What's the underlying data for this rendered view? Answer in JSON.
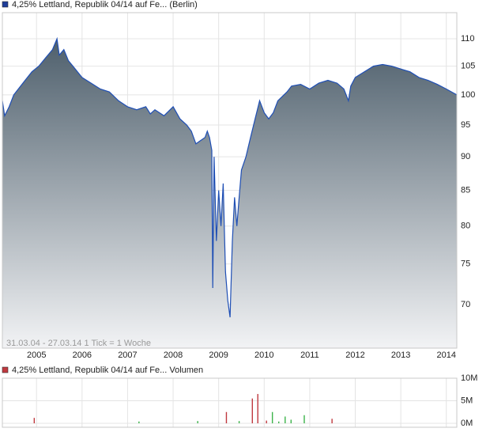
{
  "chart_data": [
    {
      "type": "line",
      "title": "4,25% Lettland, Republik 04/14 auf Fe... (Berlin)",
      "annotation": "31.03.04 - 27.03.14   1 Tick = 1 Woche",
      "legend_color": "#1f3d99",
      "line_color": "#1f4fb5",
      "log_scale": true,
      "grid": true,
      "x": [
        2004.25,
        2004.3,
        2004.4,
        2004.5,
        2004.6,
        2004.75,
        2004.9,
        2005.05,
        2005.2,
        2005.35,
        2005.45,
        2005.5,
        2005.6,
        2005.7,
        2005.8,
        2006.0,
        2006.2,
        2006.4,
        2006.6,
        2006.8,
        2007.0,
        2007.2,
        2007.4,
        2007.5,
        2007.6,
        2007.8,
        2008.0,
        2008.15,
        2008.3,
        2008.4,
        2008.5,
        2008.6,
        2008.7,
        2008.75,
        2008.8,
        2008.85,
        2008.87,
        2008.9,
        2008.95,
        2009.0,
        2009.05,
        2009.1,
        2009.15,
        2009.2,
        2009.25,
        2009.3,
        2009.35,
        2009.4,
        2009.45,
        2009.5,
        2009.6,
        2009.7,
        2009.8,
        2009.9,
        2010.0,
        2010.1,
        2010.2,
        2010.3,
        2010.5,
        2010.6,
        2010.8,
        2011.0,
        2011.2,
        2011.4,
        2011.6,
        2011.75,
        2011.85,
        2011.9,
        2012.0,
        2012.2,
        2012.4,
        2012.6,
        2012.8,
        2013.0,
        2013.2,
        2013.4,
        2013.6,
        2013.8,
        2014.0,
        2014.23
      ],
      "values": [
        99,
        96.5,
        98,
        100,
        101,
        102.5,
        104,
        105,
        106.5,
        108,
        110,
        107,
        108,
        106,
        105,
        103,
        102,
        101,
        100.5,
        99,
        98,
        97.5,
        98,
        96.8,
        97.5,
        96.5,
        98,
        96,
        95,
        94,
        92,
        92.5,
        93,
        94,
        93,
        91,
        72,
        90,
        78,
        85,
        80,
        86,
        74,
        70.5,
        68.5,
        78,
        84,
        80,
        84,
        88,
        90,
        93,
        96,
        99,
        97,
        96,
        97,
        99,
        100.5,
        101.5,
        101.8,
        101,
        102,
        102.5,
        102,
        101,
        99,
        101.5,
        103,
        104,
        105,
        105.3,
        105,
        104.5,
        104,
        103,
        102.5,
        101.8,
        101,
        100
      ],
      "xlim": [
        2004.25,
        2014.23
      ],
      "xticks": [
        2005,
        2006,
        2007,
        2008,
        2009,
        2010,
        2011,
        2012,
        2013,
        2014
      ],
      "ylim": [
        65,
        115
      ],
      "yticks": [
        70,
        75,
        80,
        85,
        90,
        95,
        100,
        105,
        110
      ]
    },
    {
      "type": "bar",
      "title": "4,25% Lettland, Republik 04/14 auf Fe... Volumen",
      "legend_color": "#c0393f",
      "x": [
        2004.95,
        2007.25,
        2008.54,
        2009.17,
        2009.45,
        2009.74,
        2009.86,
        2010.05,
        2010.18,
        2010.32,
        2010.46,
        2010.59,
        2010.88,
        2011.49
      ],
      "values": [
        1.2,
        0.4,
        0.5,
        2.5,
        0.5,
        5.5,
        6.5,
        0.6,
        2.5,
        0.4,
        1.5,
        0.8,
        1.8,
        1
      ],
      "colors": [
        "#c0393f",
        "#3cb34a",
        "#3cb34a",
        "#c0393f",
        "#3cb34a",
        "#c0393f",
        "#c0393f",
        "#c0393f",
        "#3cb34a",
        "#3cb34a",
        "#3cb34a",
        "#3cb34a",
        "#3cb34a",
        "#c0393f"
      ],
      "xlim": [
        2004.25,
        2014.23
      ],
      "xticks": [
        2005,
        2006,
        2007,
        2008,
        2009,
        2010,
        2011,
        2012,
        2013,
        2014
      ],
      "ylim": [
        0,
        10
      ],
      "yticks": [
        {
          "value": 10,
          "label": "10M"
        },
        {
          "value": 5,
          "label": "5M"
        },
        {
          "value": 0,
          "label": "0M"
        }
      ]
    }
  ]
}
